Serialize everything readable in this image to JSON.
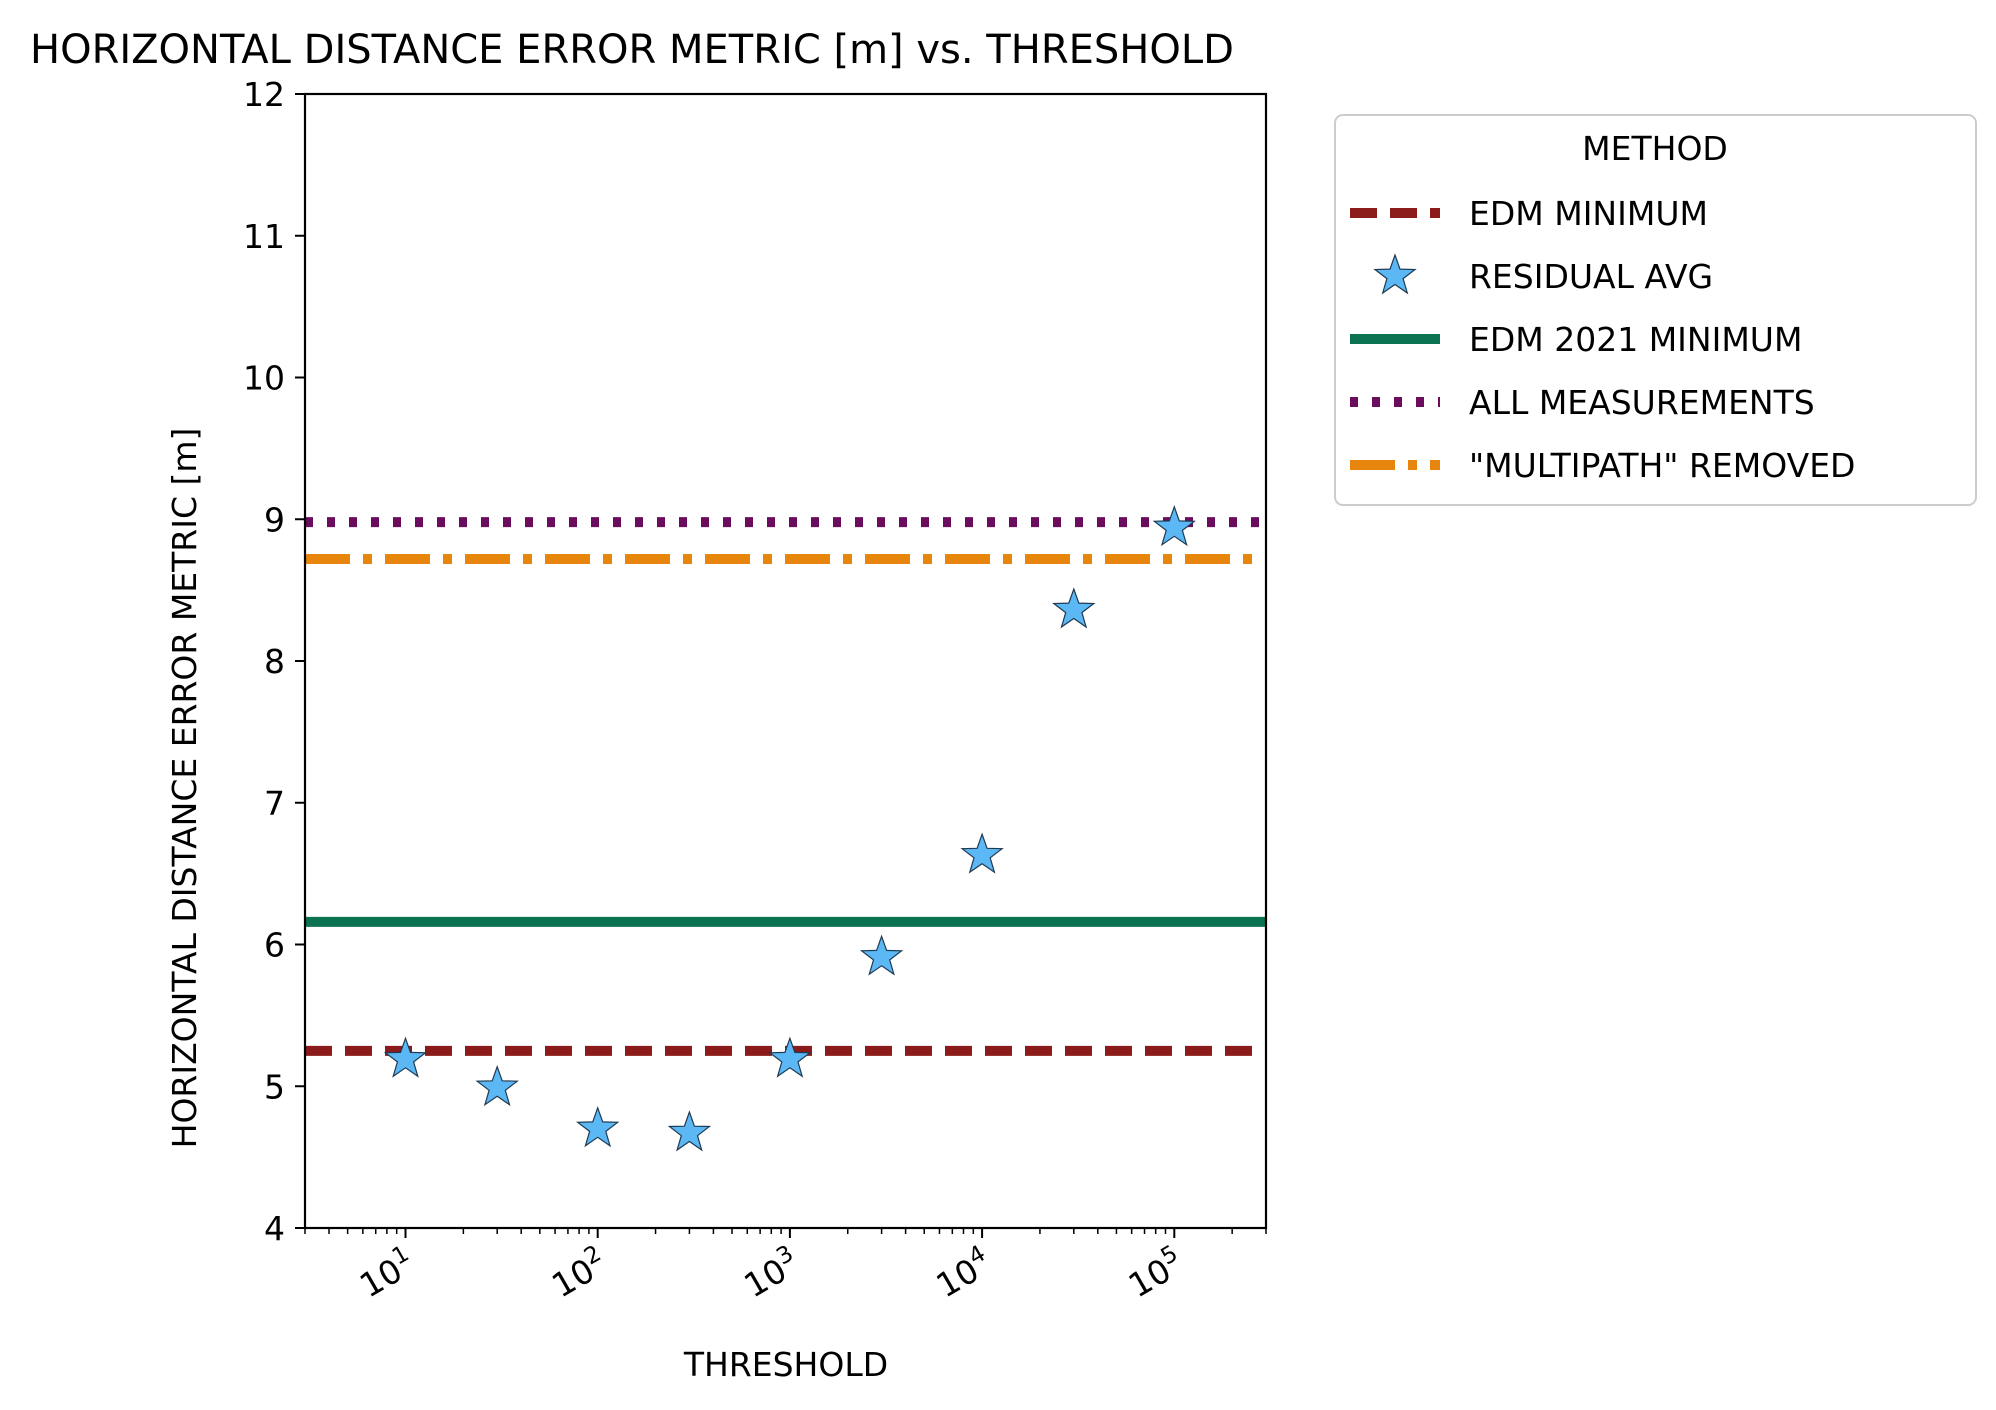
{
  "chart_data": {
    "type": "scatter",
    "title": "HORIZONTAL DISTANCE ERROR METRIC [m] vs. THRESHOLD",
    "xlabel": "THRESHOLD",
    "ylabel": "HORIZONTAL DISTANCE ERROR METRIC [m]",
    "xscale": "log",
    "xlim": [
      3,
      300000
    ],
    "ylim": [
      4,
      12
    ],
    "yticks": [
      "4",
      "5",
      "6",
      "7",
      "8",
      "9",
      "10",
      "11",
      "12"
    ],
    "xticks": [
      {
        "value": 10,
        "base": "10",
        "exp": "1"
      },
      {
        "value": 100,
        "base": "10",
        "exp": "2"
      },
      {
        "value": 1000,
        "base": "10",
        "exp": "3"
      },
      {
        "value": 10000,
        "base": "10",
        "exp": "4"
      },
      {
        "value": 100000,
        "base": "10",
        "exp": "5"
      }
    ],
    "legend": {
      "title": "METHOD",
      "position": "outside right, top",
      "entries": [
        "EDM MINIMUM",
        "RESIDUAL AVG",
        "EDM 2021 MINIMUM",
        "ALL MEASUREMENTS",
        "\"MULTIPATH\" REMOVED"
      ]
    },
    "series": [
      {
        "name": "EDM MINIMUM",
        "kind": "hline",
        "y": 5.25,
        "color": "#8b1a1a",
        "style": "dashed"
      },
      {
        "name": "RESIDUAL AVG",
        "kind": "scatter",
        "marker": "star",
        "color": "#5bb8f5",
        "x": [
          10,
          30,
          100,
          300,
          1000,
          3000,
          10000,
          30000,
          100000
        ],
        "y": [
          5.19,
          4.99,
          4.7,
          4.67,
          5.19,
          5.91,
          6.63,
          8.36,
          8.94
        ]
      },
      {
        "name": "EDM 2021 MINIMUM",
        "kind": "hline",
        "y": 6.16,
        "color": "#0b7352",
        "style": "solid"
      },
      {
        "name": "ALL MEASUREMENTS",
        "kind": "hline",
        "y": 8.98,
        "color": "#6a0d5e",
        "style": "dotted"
      },
      {
        "name": "\"MULTIPATH\" REMOVED",
        "kind": "hline",
        "y": 8.72,
        "color": "#e8850c",
        "style": "dashdot"
      }
    ]
  }
}
